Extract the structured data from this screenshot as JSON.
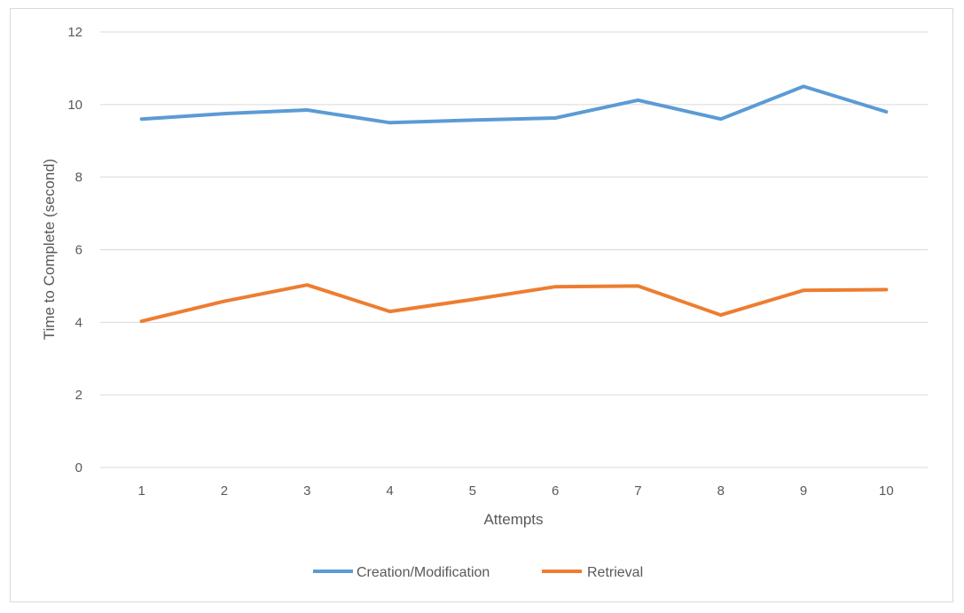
{
  "chart_data": {
    "type": "line",
    "title": "",
    "xlabel": "Attempts",
    "ylabel": "Time to Complete (second)",
    "categories": [
      "1",
      "2",
      "3",
      "4",
      "5",
      "6",
      "7",
      "8",
      "9",
      "10"
    ],
    "ylim": [
      0,
      12
    ],
    "yticks": [
      "0",
      "2",
      "4",
      "6",
      "8",
      "10",
      "12"
    ],
    "grid": true,
    "legend_position": "bottom",
    "series": [
      {
        "name": "Creation/Modification",
        "color": "#5b9bd5",
        "values": [
          9.6,
          9.75,
          9.85,
          9.5,
          9.57,
          9.63,
          10.12,
          9.6,
          10.5,
          9.8
        ]
      },
      {
        "name": "Retrieval",
        "color": "#ed7d31",
        "values": [
          4.03,
          4.58,
          5.03,
          4.3,
          4.63,
          4.98,
          5.0,
          4.2,
          4.88,
          4.9
        ]
      }
    ]
  }
}
